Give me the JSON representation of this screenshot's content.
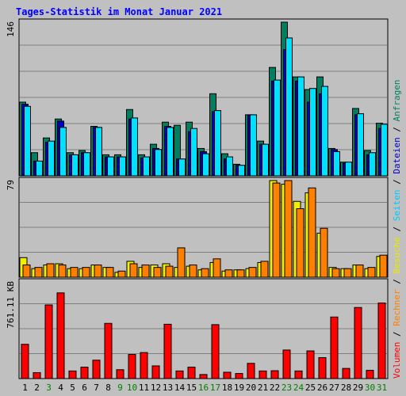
{
  "chart_data": {
    "type": "bar",
    "title": "Tages-Statistik im Monat Januar 2021",
    "categories": [
      "1",
      "2",
      "3",
      "4",
      "5",
      "6",
      "7",
      "8",
      "9",
      "10",
      "11",
      "12",
      "13",
      "14",
      "15",
      "16",
      "17",
      "18",
      "19",
      "20",
      "21",
      "22",
      "23",
      "24",
      "25",
      "26",
      "27",
      "28",
      "29",
      "30",
      "31"
    ],
    "weekend_days": [
      "3",
      "9",
      "10",
      "16",
      "17",
      "23",
      "24",
      "30",
      "31"
    ],
    "panels": [
      {
        "id": "top",
        "ymax_label": "146",
        "ymax": 146,
        "series": [
          {
            "name": "Anfragen",
            "color": "#007f60",
            "values": [
              70,
              22,
              36,
              54,
              22,
              24,
              47,
              20,
              20,
              63,
              20,
              30,
              51,
              48,
              51,
              26,
              78,
              21,
              11,
              58,
              33,
              103,
              146,
              94,
              82,
              94,
              26,
              13,
              64,
              24,
              50
            ]
          },
          {
            "name": "Dateien",
            "color": "#0000c0",
            "values": [
              68,
              14,
              32,
              52,
              20,
              22,
              46,
              18,
              18,
              54,
              17,
              26,
              47,
              16,
              42,
              23,
              61,
              16,
              10,
              58,
              30,
              90,
              120,
              90,
              70,
              78,
              25,
              12,
              58,
              20,
              45
            ]
          },
          {
            "name": "Seiten",
            "color": "#00e0ff",
            "values": [
              66,
              14,
              33,
              46,
              20,
              22,
              46,
              18,
              18,
              55,
              18,
              25,
              46,
              16,
              45,
              21,
              62,
              18,
              10,
              58,
              30,
              91,
              131,
              94,
              83,
              85,
              23,
              13,
              59,
              22,
              49
            ]
          }
        ]
      },
      {
        "id": "middle",
        "ymax_label": "79",
        "ymax": 79,
        "series": [
          {
            "name": "Besuche",
            "color": "#f0f000",
            "values": [
              16,
              7,
              10,
              11,
              7,
              7,
              10,
              8,
              4,
              13,
              8,
              10,
              11,
              8,
              9,
              6,
              12,
              5,
              6,
              7,
              12,
              79,
              76,
              62,
              69,
              36,
              8,
              7,
              10,
              7,
              17
            ]
          },
          {
            "name": "Rechner",
            "color": "#ff8000",
            "values": [
              10,
              8,
              11,
              10,
              8,
              8,
              10,
              8,
              5,
              11,
              10,
              8,
              9,
              24,
              10,
              7,
              15,
              6,
              6,
              8,
              13,
              77,
              79,
              56,
              73,
              40,
              7,
              7,
              10,
              8,
              18
            ]
          }
        ]
      },
      {
        "id": "bottom",
        "ymax_label": "761.11 KB",
        "ymax": 761.11,
        "series": [
          {
            "name": "Volumen",
            "color": "#ff0000",
            "values": [
              270,
              47,
              580,
              675,
              60,
              90,
              145,
              435,
              70,
              190,
              205,
              100,
              428,
              60,
              90,
              32,
              425,
              50,
              40,
              120,
              60,
              62,
              225,
              60,
              218,
              165,
              485,
              80,
              560,
              65,
              595
            ]
          }
        ]
      }
    ],
    "right_legend": [
      {
        "text": "Volumen",
        "color": "#ff0000"
      },
      {
        "text": " / ",
        "color": "#000000"
      },
      {
        "text": "Rechner",
        "color": "#ff8000"
      },
      {
        "text": " / ",
        "color": "#000000"
      },
      {
        "text": "Besuche",
        "color": "#e8e800"
      },
      {
        "text": " / ",
        "color": "#000000"
      },
      {
        "text": "Seiten",
        "color": "#00c8ff"
      },
      {
        "text": " / ",
        "color": "#000000"
      },
      {
        "text": "Dateien",
        "color": "#0000c0"
      },
      {
        "text": " / ",
        "color": "#000000"
      },
      {
        "text": "Anfragen",
        "color": "#008060"
      }
    ],
    "colors": {
      "title": "#0000ff",
      "background": "#c0c0c0",
      "weekday_label": "#000000",
      "weekend_label": "#008000"
    }
  }
}
